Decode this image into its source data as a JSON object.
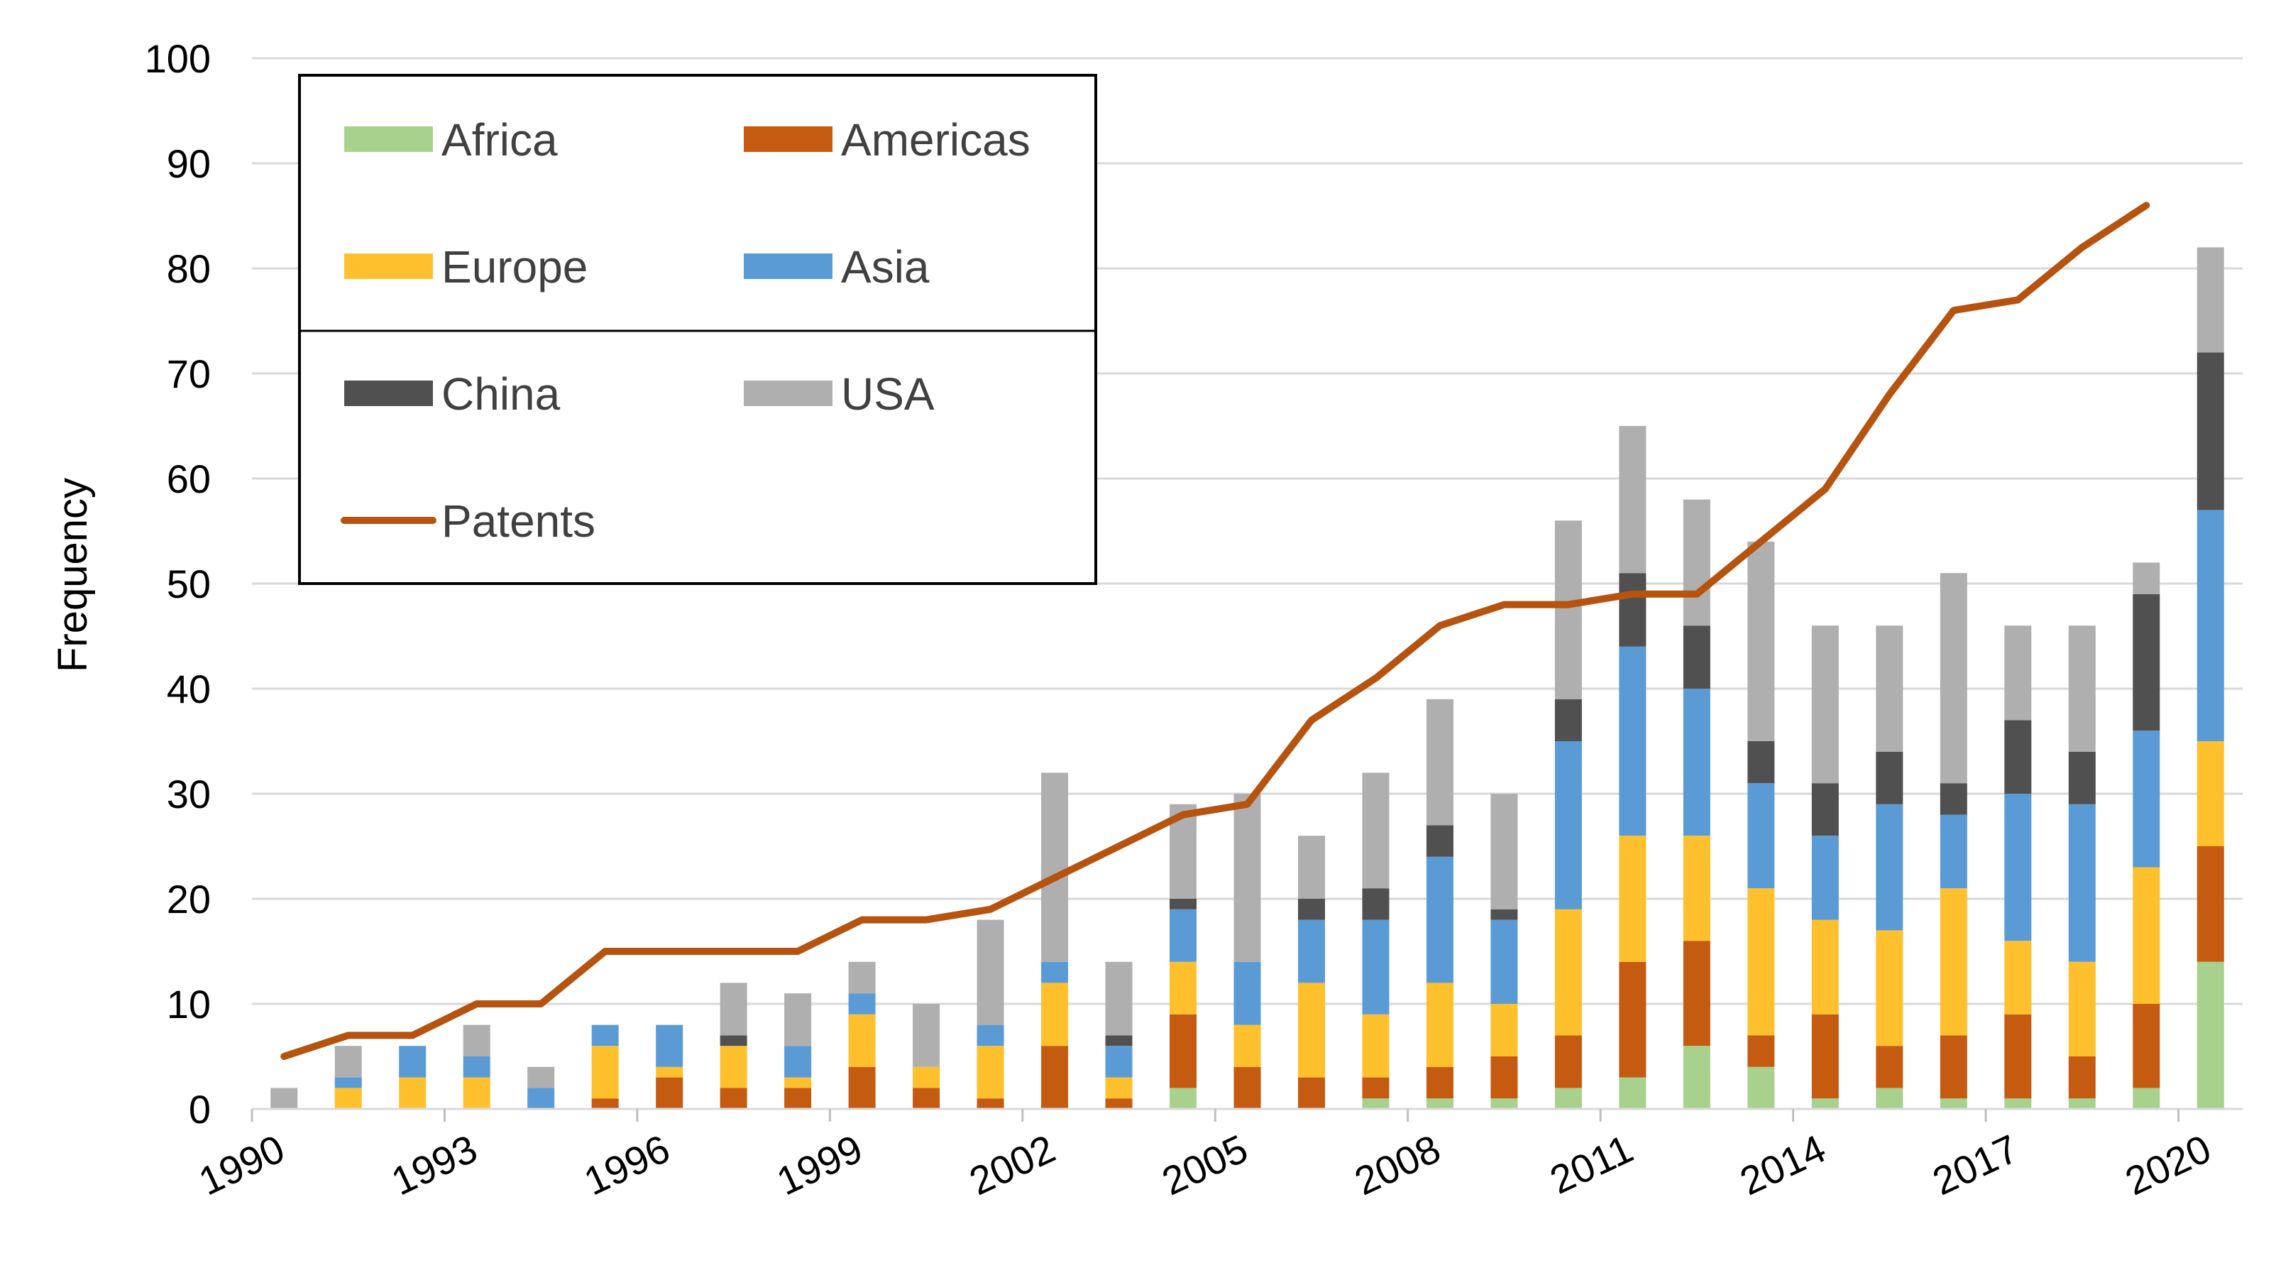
{
  "chart_data": {
    "type": "bar",
    "stacked": true,
    "xlabel": "",
    "ylabel": "Frequency",
    "ylim": [
      0,
      100
    ],
    "yticks": [
      0,
      10,
      20,
      30,
      40,
      50,
      60,
      70,
      80,
      90,
      100
    ],
    "xtick_labels": [
      "1990",
      "1993",
      "1996",
      "1999",
      "2002",
      "2005",
      "2008",
      "2011",
      "2014",
      "2017",
      "2020"
    ],
    "grid": "horizontal",
    "legend_position": "top-left",
    "x": [
      1990,
      1991,
      1992,
      1993,
      1994,
      1995,
      1996,
      1997,
      1998,
      1999,
      2000,
      2001,
      2002,
      2003,
      2004,
      2005,
      2006,
      2007,
      2008,
      2009,
      2010,
      2011,
      2012,
      2013,
      2014,
      2015,
      2016,
      2017,
      2018,
      2019,
      2020
    ],
    "series": [
      {
        "name": "Africa",
        "color": "#a9d18e",
        "values": [
          0,
          0,
          0,
          0,
          0,
          0,
          0,
          0,
          0,
          0,
          0,
          0,
          0,
          0,
          2,
          0,
          0,
          1,
          1,
          1,
          2,
          3,
          6,
          4,
          1,
          2,
          1,
          1,
          1,
          2,
          14
        ]
      },
      {
        "name": "Americas",
        "color": "#c55a11",
        "values": [
          0,
          0,
          0,
          0,
          0,
          1,
          3,
          2,
          2,
          4,
          2,
          1,
          6,
          1,
          7,
          4,
          3,
          2,
          3,
          4,
          5,
          11,
          10,
          3,
          8,
          4,
          6,
          8,
          4,
          8,
          11
        ]
      },
      {
        "name": "Europe",
        "color": "#ffc02d",
        "values": [
          0,
          2,
          3,
          3,
          0,
          5,
          1,
          4,
          1,
          5,
          2,
          5,
          6,
          2,
          5,
          4,
          9,
          6,
          8,
          5,
          12,
          12,
          10,
          14,
          9,
          11,
          14,
          7,
          9,
          13,
          10
        ]
      },
      {
        "name": "Asia",
        "color": "#5b9bd5",
        "values": [
          0,
          1,
          3,
          2,
          2,
          2,
          4,
          0,
          3,
          2,
          0,
          2,
          2,
          3,
          5,
          6,
          6,
          9,
          12,
          8,
          16,
          18,
          14,
          10,
          8,
          12,
          7,
          14,
          15,
          13,
          22
        ]
      },
      {
        "name": "China",
        "color": "#505050",
        "values": [
          0,
          0,
          0,
          0,
          0,
          0,
          0,
          1,
          0,
          0,
          0,
          0,
          0,
          1,
          1,
          0,
          2,
          3,
          3,
          1,
          4,
          7,
          6,
          4,
          5,
          5,
          3,
          7,
          5,
          13,
          15
        ]
      },
      {
        "name": "USA",
        "color": "#afafaf",
        "values": [
          2,
          3,
          0,
          3,
          2,
          0,
          0,
          5,
          5,
          3,
          6,
          10,
          18,
          7,
          9,
          16,
          6,
          11,
          12,
          11,
          17,
          14,
          12,
          19,
          15,
          12,
          20,
          9,
          12,
          3,
          10
        ]
      },
      {
        "name": "Patents",
        "type": "line",
        "color": "#b5530f",
        "values": [
          5,
          7,
          7,
          10,
          10,
          15,
          15,
          15,
          15,
          18,
          18,
          19,
          22,
          25,
          28,
          29,
          37,
          41,
          46,
          48,
          48,
          49,
          49,
          54,
          59,
          68,
          76,
          77,
          82,
          86,
          null
        ]
      }
    ]
  },
  "legend": {
    "items": [
      {
        "label": "Africa",
        "color": "#a9d18e",
        "kind": "swatch"
      },
      {
        "label": "Americas",
        "color": "#c55a11",
        "kind": "swatch"
      },
      {
        "label": "Europe",
        "color": "#ffc02d",
        "kind": "swatch"
      },
      {
        "label": "Asia",
        "color": "#5b9bd5",
        "kind": "swatch"
      },
      {
        "label": "China",
        "color": "#505050",
        "kind": "swatch"
      },
      {
        "label": "USA",
        "color": "#afafaf",
        "kind": "swatch"
      },
      {
        "label": "Patents",
        "color": "#b5530f",
        "kind": "line"
      }
    ]
  }
}
